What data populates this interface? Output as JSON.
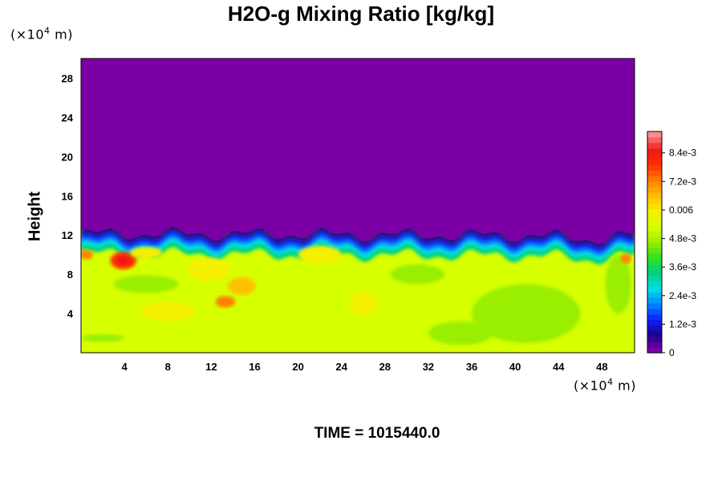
{
  "chart_data": {
    "type": "heatmap",
    "title": "H2O-g Mixing Ratio [kg/kg]",
    "xlabel": "",
    "ylabel": "Height",
    "x_unit": {
      "prefix": "(×10",
      "exp": "4",
      "suffix": " m)"
    },
    "y_unit": {
      "prefix": "(×10",
      "exp": "4",
      "suffix": " m)"
    },
    "xlim": [
      0,
      51
    ],
    "ylim": [
      0,
      30
    ],
    "xticks": [
      4,
      8,
      12,
      16,
      20,
      24,
      28,
      32,
      36,
      40,
      44,
      48
    ],
    "yticks": [
      4,
      8,
      12,
      16,
      20,
      24,
      28
    ],
    "colorbar": {
      "range": [
        0,
        0.0093
      ],
      "tick_values": [
        0,
        0.0012,
        0.0024,
        0.0036,
        0.0048,
        0.006,
        0.0072,
        0.0084
      ],
      "tick_labels": [
        "0",
        "1.2e-3",
        "2.4e-3",
        "3.6e-3",
        "4.8e-3",
        "0.006",
        "7.2e-3",
        "8.4e-3"
      ],
      "colors": [
        "#7a00a6",
        "#1e0090",
        "#0a20ff",
        "#0088ff",
        "#00e0e8",
        "#00d080",
        "#30e020",
        "#9aee00",
        "#d6ff00",
        "#f4f000",
        "#ffc000",
        "#ff8000",
        "#ff3000",
        "#f01818",
        "#ff8a8a"
      ]
    },
    "field": {
      "dry_top_value": 0.0,
      "boundary_height_approx": 11.5,
      "moist_lower_value": 0.0058,
      "dry_color": "#7a00a6",
      "moist_color": "#d6ff00"
    },
    "time_label": "TIME = 1015440.0"
  }
}
